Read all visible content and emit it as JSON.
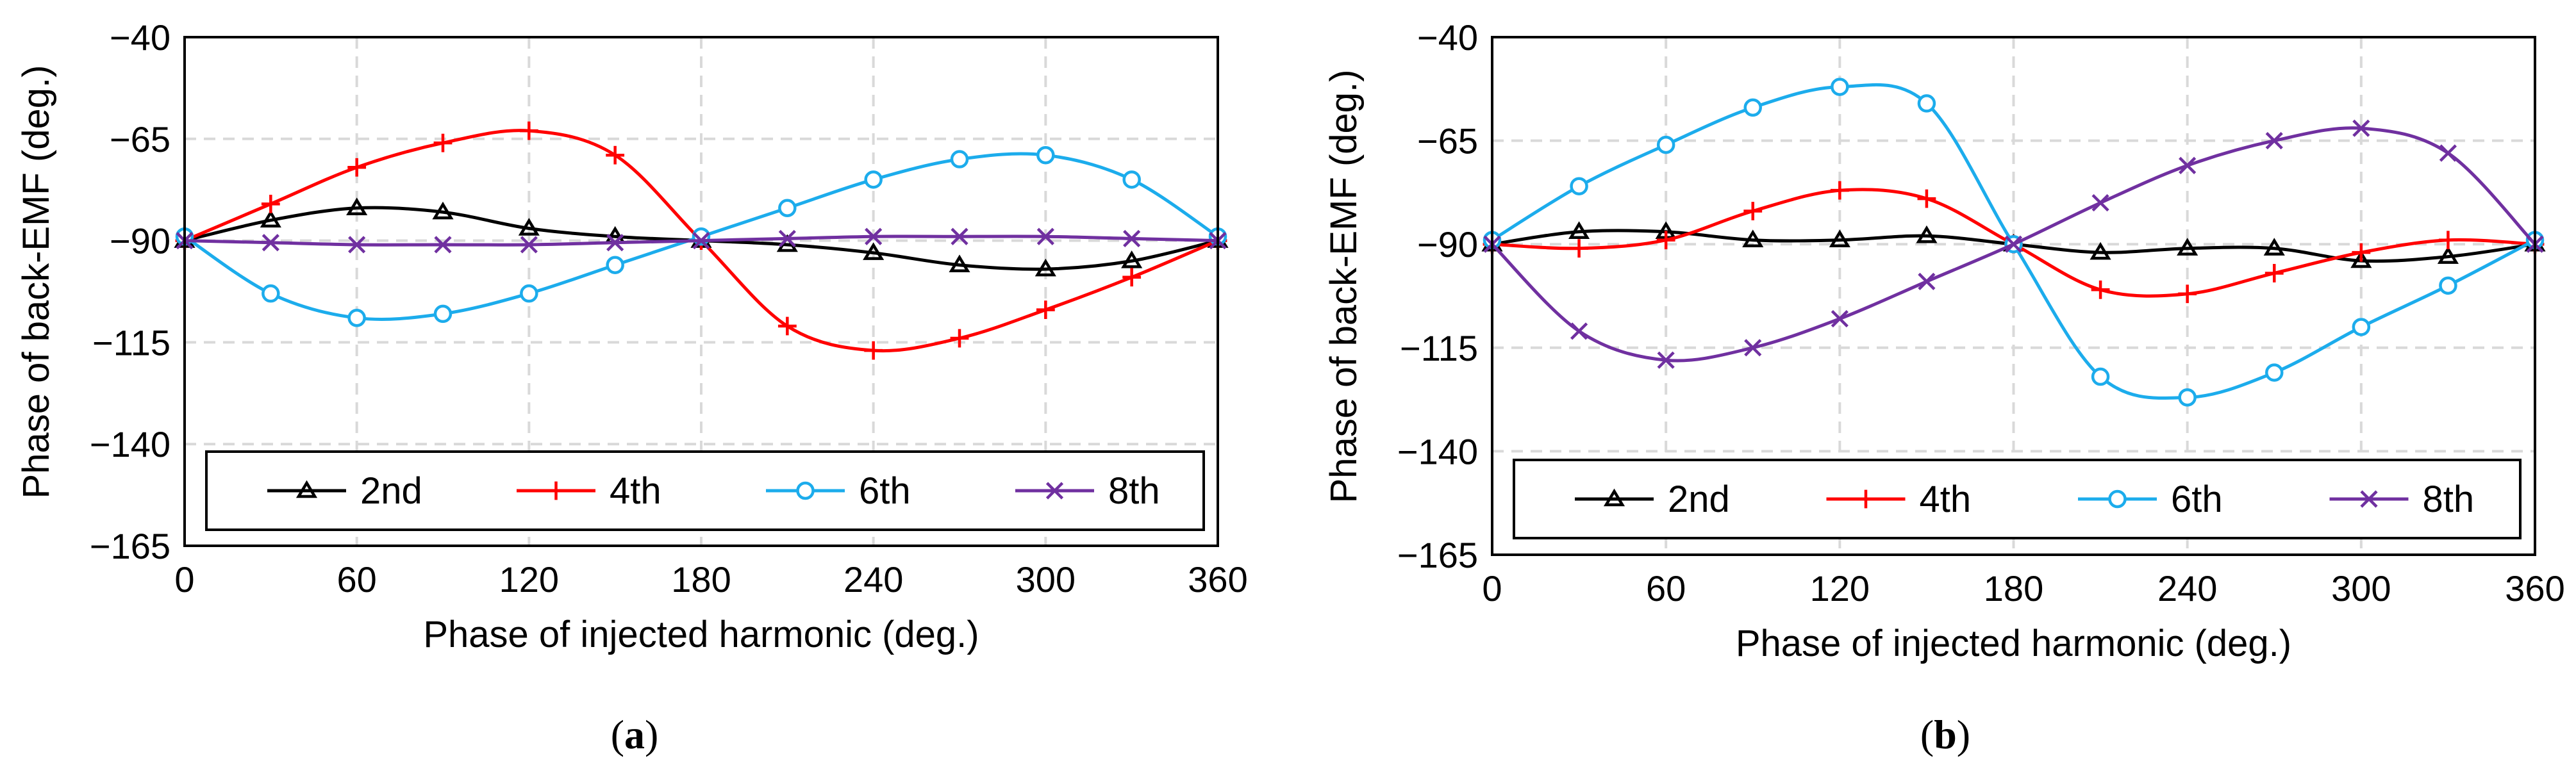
{
  "chart_data": [
    {
      "type": "line",
      "caption_letter": "a",
      "xlabel": "Phase of injected harmonic (deg.)",
      "ylabel": "Phase of back-EMF (deg.)",
      "xlim": [
        0,
        360
      ],
      "ylim": [
        -165,
        -40
      ],
      "xticks": [
        0,
        60,
        120,
        180,
        240,
        300,
        360
      ],
      "yticks": [
        -40,
        -65,
        -90,
        -115,
        -140,
        -165
      ],
      "legend_position": "bottom",
      "grid": true,
      "x": [
        0,
        30,
        60,
        90,
        120,
        150,
        180,
        210,
        240,
        270,
        300,
        330,
        360
      ],
      "series": [
        {
          "name": "2nd",
          "color": "#000000",
          "marker": "triangle",
          "values": [
            -90,
            -85,
            -82,
            -83,
            -87,
            -89,
            -90,
            -91,
            -93,
            -96,
            -97,
            -95,
            -90
          ]
        },
        {
          "name": "4th",
          "color": "#ff0000",
          "marker": "plus",
          "values": [
            -90,
            -81,
            -72,
            -66,
            -63,
            -69,
            -90,
            -111,
            -117,
            -114,
            -107,
            -99,
            -90
          ]
        },
        {
          "name": "6th",
          "color": "#1cacec",
          "marker": "circle",
          "values": [
            -89,
            -103,
            -109,
            -108,
            -103,
            -96,
            -89,
            -82,
            -75,
            -70,
            -69,
            -75,
            -89
          ]
        },
        {
          "name": "8th",
          "color": "#7030a0",
          "marker": "x",
          "values": [
            -90,
            -90.5,
            -91,
            -91,
            -91,
            -90.5,
            -90,
            -89.5,
            -89,
            -89,
            -89,
            -89.5,
            -90
          ]
        }
      ]
    },
    {
      "type": "line",
      "caption_letter": "b",
      "xlabel": "Phase of injected harmonic (deg.)",
      "ylabel": "Phase of back-EMF (deg.)",
      "xlim": [
        0,
        360
      ],
      "ylim": [
        -165,
        -40
      ],
      "xticks": [
        0,
        60,
        120,
        180,
        240,
        300,
        360
      ],
      "yticks": [
        -40,
        -65,
        -90,
        -115,
        -140,
        -165
      ],
      "legend_position": "bottom",
      "grid": true,
      "x": [
        0,
        30,
        60,
        90,
        120,
        150,
        180,
        210,
        240,
        270,
        300,
        330,
        360
      ],
      "series": [
        {
          "name": "2nd",
          "color": "#000000",
          "marker": "triangle",
          "values": [
            -90,
            -87,
            -87,
            -89,
            -89,
            -88,
            -90,
            -92,
            -91,
            -91,
            -94,
            -93,
            -90
          ]
        },
        {
          "name": "4th",
          "color": "#ff0000",
          "marker": "plus",
          "values": [
            -90,
            -91,
            -89,
            -82,
            -77,
            -79,
            -90,
            -101,
            -102,
            -97,
            -92,
            -89,
            -90
          ]
        },
        {
          "name": "6th",
          "color": "#1cacec",
          "marker": "circle",
          "values": [
            -89,
            -76,
            -66,
            -57,
            -52,
            -56,
            -90,
            -122,
            -127,
            -121,
            -110,
            -100,
            -89
          ]
        },
        {
          "name": "8th",
          "color": "#7030a0",
          "marker": "x",
          "values": [
            -90,
            -111,
            -118,
            -115,
            -108,
            -99,
            -90,
            -80,
            -71,
            -65,
            -62,
            -68,
            -90
          ]
        }
      ]
    }
  ]
}
